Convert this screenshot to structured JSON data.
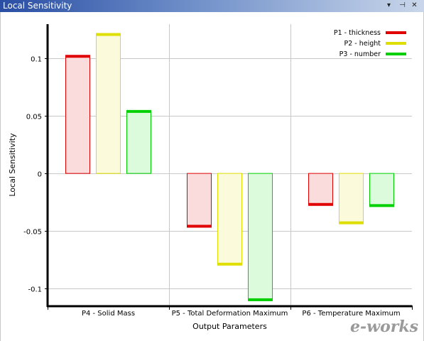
{
  "window": {
    "title": "Local Sensitivity",
    "controls": {
      "dropdown": "▾",
      "pin": "⊣",
      "close": "✕"
    }
  },
  "chart_data": {
    "type": "bar",
    "title": "",
    "xlabel": "Output Parameters",
    "ylabel": "Local Sensitivity",
    "ylim": [
      -0.115,
      0.13
    ],
    "yticks": [
      0.1,
      0.05,
      0,
      -0.05,
      -0.1
    ],
    "ytick_labels": [
      "0.1",
      "0.05",
      "0",
      "-0.05",
      "-0.1"
    ],
    "grid": true,
    "legend_position": "top-right",
    "categories": [
      "P4 - Solid Mass",
      "P5 - Total Deformation Maximum",
      "P6 - Temperature Maximum"
    ],
    "series": [
      {
        "name": "P1 - thickness",
        "values": [
          0.102,
          -0.046,
          -0.027
        ],
        "color": "#e00000",
        "fill": "#fbdcdc"
      },
      {
        "name": "P2 - height",
        "values": [
          0.121,
          -0.079,
          -0.043
        ],
        "color": "#dede00",
        "fill": "#fbfbdc"
      },
      {
        "name": "P3 - number",
        "values": [
          0.054,
          -0.11,
          -0.028
        ],
        "color": "#00d000",
        "fill": "#dcfbdc"
      }
    ]
  },
  "watermark": {
    "text": "e-works"
  }
}
